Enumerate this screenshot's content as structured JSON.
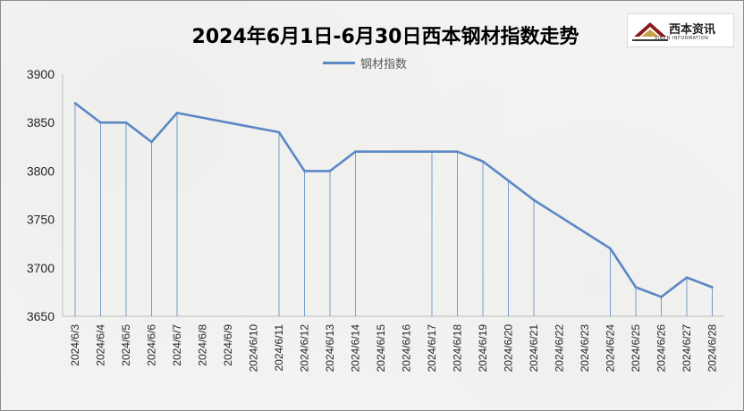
{
  "chart_data": {
    "type": "line",
    "title": "2024年6月1日-6月30日西本钢材指数走势",
    "categories": [
      "2024/6/3",
      "2024/6/4",
      "2024/6/5",
      "2024/6/6",
      "2024/6/7",
      "2024/6/8",
      "2024/6/9",
      "2024/6/10",
      "2024/6/11",
      "2024/6/12",
      "2024/6/13",
      "2024/6/14",
      "2024/6/15",
      "2024/6/16",
      "2024/6/17",
      "2024/6/18",
      "2024/6/19",
      "2024/6/20",
      "2024/6/21",
      "2024/6/22",
      "2024/6/23",
      "2024/6/24",
      "2024/6/25",
      "2024/6/26",
      "2024/6/27",
      "2024/6/28"
    ],
    "series": [
      {
        "name": "钢材指数",
        "values": [
          3870,
          3850,
          3850,
          3830,
          3860,
          null,
          null,
          null,
          3840,
          3800,
          3800,
          3820,
          null,
          null,
          3820,
          3820,
          3810,
          3790,
          3770,
          null,
          null,
          3720,
          3680,
          3670,
          3690,
          3680
        ]
      }
    ],
    "ylim": [
      3650,
      3900
    ],
    "yticks": [
      3650,
      3700,
      3750,
      3800,
      3850,
      3900
    ],
    "grid": false,
    "drop_lines": true,
    "legend": "top-center",
    "line_color": "#5b87c5"
  },
  "logo": {
    "text": "西本资讯",
    "subtext": "XIBEN INFORMATION"
  }
}
